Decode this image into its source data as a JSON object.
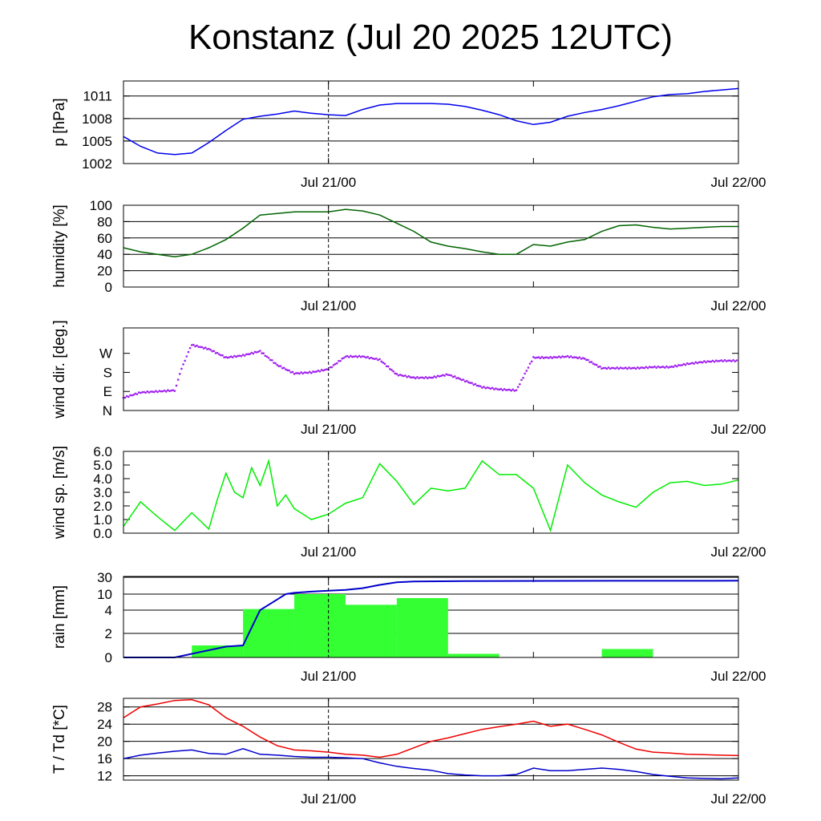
{
  "title": "Konstanz (Jul 20 2025 12UTC)",
  "x_ticks": [
    "Jul 21/00",
    "Jul 22/00"
  ],
  "chart_data": [
    {
      "type": "line",
      "ylabel": "p [hPa]",
      "ylim": [
        1002,
        1013
      ],
      "yticks": [
        1002,
        1005,
        1008,
        1011
      ],
      "grid": true,
      "series": [
        {
          "color": "#0000ee",
          "x": [
            0,
            1,
            2,
            3,
            4,
            5,
            6,
            7,
            8,
            9,
            10,
            11,
            12,
            13,
            14,
            15,
            16,
            17,
            18,
            19,
            20,
            21,
            22,
            23,
            24,
            25,
            26,
            27,
            28,
            29,
            30,
            31,
            32,
            33,
            34,
            35,
            36
          ],
          "values": [
            1005.6,
            1004.3,
            1003.4,
            1003.2,
            1003.4,
            1004.8,
            1006.4,
            1007.9,
            1008.3,
            1008.6,
            1009.0,
            1008.7,
            1008.5,
            1008.4,
            1009.2,
            1009.8,
            1010.0,
            1010.0,
            1010.0,
            1009.9,
            1009.6,
            1009.1,
            1008.5,
            1007.7,
            1007.2,
            1007.5,
            1008.3,
            1008.8,
            1009.2,
            1009.7,
            1010.3,
            1010.9,
            1011.2,
            1011.3,
            1011.6,
            1011.8,
            1012.0
          ]
        }
      ]
    },
    {
      "type": "line",
      "ylabel": "humidity [%]",
      "ylim": [
        0,
        100
      ],
      "yticks": [
        0,
        20,
        40,
        60,
        80,
        100
      ],
      "grid": true,
      "series": [
        {
          "color": "#006400",
          "x": [
            0,
            1,
            2,
            3,
            4,
            5,
            6,
            7,
            8,
            9,
            10,
            11,
            12,
            13,
            14,
            15,
            16,
            17,
            18,
            19,
            20,
            21,
            22,
            23,
            24,
            25,
            26,
            27,
            28,
            29,
            30,
            31,
            32,
            33,
            34,
            35,
            36
          ],
          "values": [
            48,
            43,
            40,
            37,
            40,
            48,
            58,
            72,
            88,
            90,
            92,
            92,
            92,
            95,
            93,
            88,
            78,
            68,
            55,
            50,
            47,
            43,
            40,
            40,
            52,
            50,
            55,
            58,
            68,
            75,
            76,
            73,
            71,
            72,
            73,
            74,
            74
          ]
        }
      ]
    },
    {
      "type": "scatter",
      "ylabel": "wind dir. [deg.]",
      "ylim": [
        0,
        390
      ],
      "yticks": [
        0,
        90,
        180,
        270
      ],
      "ytick_labels": [
        "N",
        "E",
        "S",
        "W"
      ],
      "grid": false,
      "series": [
        {
          "color": "#a020f0",
          "x": [
            0,
            1,
            2,
            3,
            3.5,
            4,
            5,
            6,
            7,
            8,
            9,
            10,
            11,
            12,
            13,
            14,
            15,
            16,
            17,
            18,
            19,
            20,
            21,
            22,
            23,
            24,
            25,
            26,
            27,
            28,
            29,
            30,
            31,
            32,
            33,
            34,
            35,
            36
          ],
          "values": [
            60,
            85,
            90,
            95,
            220,
            310,
            290,
            250,
            260,
            280,
            215,
            175,
            180,
            195,
            255,
            255,
            240,
            170,
            155,
            155,
            170,
            140,
            110,
            100,
            95,
            250,
            250,
            255,
            245,
            200,
            200,
            200,
            205,
            205,
            220,
            230,
            235,
            235
          ]
        }
      ]
    },
    {
      "type": "line",
      "ylabel": "wind sp. [m/s]",
      "ylim": [
        0,
        6
      ],
      "yticks": [
        0,
        1,
        2,
        3,
        4,
        5,
        6
      ],
      "ytick_labels": [
        "0.0",
        "1.0",
        "2.0",
        "3.0",
        "4.0",
        "5.0",
        "6.0"
      ],
      "grid": false,
      "series": [
        {
          "color": "#00ee00",
          "x": [
            0,
            1,
            2,
            3,
            4,
            5,
            5.5,
            6,
            6.5,
            7,
            7.5,
            8,
            8.5,
            9,
            9.5,
            10,
            11,
            12,
            13,
            14,
            15,
            16,
            17,
            18,
            19,
            20,
            21,
            22,
            23,
            24,
            25,
            26,
            27,
            28,
            29,
            30,
            31,
            32,
            33,
            34,
            35,
            36
          ],
          "values": [
            0.5,
            2.3,
            1.2,
            0.2,
            1.5,
            0.3,
            2.5,
            4.4,
            3.0,
            2.6,
            4.8,
            3.5,
            5.3,
            2.0,
            2.8,
            1.8,
            1.0,
            1.4,
            2.2,
            2.6,
            5.1,
            3.8,
            2.1,
            3.3,
            3.1,
            3.3,
            5.3,
            4.3,
            4.3,
            3.3,
            0.2,
            5.0,
            3.7,
            2.8,
            2.3,
            1.9,
            3.0,
            3.7,
            3.8,
            3.5,
            3.6,
            3.9
          ]
        }
      ]
    },
    {
      "type": "bar",
      "ylabel": "rain [mm]",
      "ylim": [
        0,
        30
      ],
      "yticks": [
        0,
        2,
        4,
        10,
        30
      ],
      "y_scale": "nonlinear (ticks 0, 2, 4, 10, 30)",
      "grid": true,
      "bar_color": "#33ff33",
      "line_color": "#0000cc",
      "bars": [
        {
          "x": [
            4,
            7
          ],
          "value": 1.0
        },
        {
          "x": [
            7,
            10
          ],
          "value": 4.4
        },
        {
          "x": [
            10,
            13
          ],
          "value": 10.0
        },
        {
          "x": [
            13,
            16
          ],
          "value": 6.0
        },
        {
          "x": [
            16,
            19
          ],
          "value": 8.5
        },
        {
          "x": [
            19,
            22
          ],
          "value": 0.3
        },
        {
          "x": [
            28,
            31
          ],
          "value": 0.7
        }
      ],
      "cumulative": {
        "x": [
          0,
          3,
          4,
          5,
          6,
          7,
          7.5,
          8,
          8.5,
          9,
          9.5,
          10,
          11,
          12,
          13,
          14,
          15,
          16,
          17,
          20,
          25,
          30,
          36
        ],
        "values": [
          0,
          0,
          0.3,
          0.6,
          0.9,
          1.0,
          2.5,
          4.0,
          6.0,
          8.0,
          10.0,
          11.5,
          13.0,
          14.0,
          15.0,
          17.0,
          21.0,
          24.0,
          25.0,
          25.5,
          25.7,
          25.8,
          25.9
        ]
      }
    },
    {
      "type": "line",
      "ylabel": "T / Td [*C]",
      "ylim": [
        11,
        30
      ],
      "yticks": [
        12,
        16,
        20,
        24,
        28
      ],
      "grid": true,
      "series": [
        {
          "color": "#ee0000",
          "x": [
            0,
            1,
            2,
            3,
            4,
            5,
            6,
            7,
            8,
            9,
            10,
            11,
            12,
            13,
            14,
            15,
            16,
            17,
            18,
            19,
            20,
            21,
            22,
            23,
            24,
            25,
            26,
            27,
            28,
            29,
            30,
            31,
            32,
            33,
            34,
            35,
            36
          ],
          "values": [
            25.5,
            28.0,
            28.7,
            29.5,
            29.7,
            28.5,
            25.5,
            23.5,
            21.0,
            19.0,
            18.0,
            17.8,
            17.5,
            17.0,
            16.8,
            16.3,
            17.0,
            18.5,
            20.0,
            20.8,
            21.8,
            22.8,
            23.4,
            24.0,
            24.7,
            23.5,
            24.0,
            22.8,
            21.5,
            19.8,
            18.2,
            17.5,
            17.3,
            17.0,
            16.9,
            16.8,
            16.7
          ]
        },
        {
          "color": "#0000cc",
          "x": [
            0,
            1,
            2,
            3,
            4,
            5,
            6,
            7,
            8,
            9,
            10,
            11,
            12,
            13,
            14,
            15,
            16,
            17,
            18,
            19,
            20,
            21,
            22,
            23,
            24,
            25,
            26,
            27,
            28,
            29,
            30,
            31,
            32,
            33,
            34,
            35,
            36
          ],
          "values": [
            16.0,
            16.8,
            17.3,
            17.7,
            18.0,
            17.2,
            17.0,
            18.3,
            17.0,
            16.8,
            16.5,
            16.3,
            16.3,
            16.2,
            16.0,
            15.0,
            14.2,
            13.7,
            13.3,
            12.5,
            12.2,
            12.0,
            12.0,
            12.3,
            13.8,
            13.2,
            13.2,
            13.5,
            13.8,
            13.5,
            13.0,
            12.3,
            11.9,
            11.5,
            11.4,
            11.3,
            11.5
          ]
        }
      ]
    }
  ]
}
